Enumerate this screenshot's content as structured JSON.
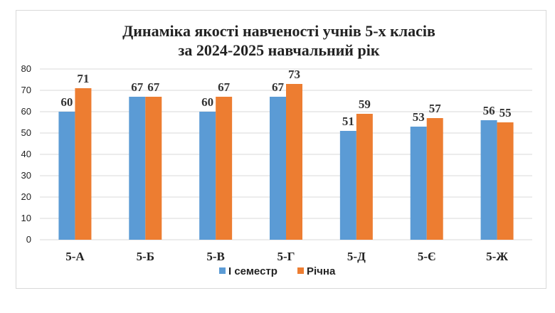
{
  "chart_data": {
    "type": "bar",
    "title_lines": [
      "Динаміка якості навченості учнів 5-х класів",
      "за 2024-2025 навчальний рік"
    ],
    "categories": [
      "5-А",
      "5-Б",
      "5-В",
      "5-Г",
      "5-Д",
      "5-Є",
      "5-Ж"
    ],
    "series": [
      {
        "name": "І семестр",
        "color": "#5b9bd5",
        "values": [
          60,
          67,
          60,
          67,
          51,
          53,
          56
        ]
      },
      {
        "name": "Річна",
        "color": "#ed7d31",
        "values": [
          71,
          67,
          67,
          73,
          59,
          57,
          55
        ]
      }
    ],
    "ylim": [
      0,
      80
    ],
    "yticks": [
      0,
      10,
      20,
      30,
      40,
      50,
      60,
      70,
      80
    ],
    "grid": true,
    "legend_position": "bottom",
    "xlabel": "",
    "ylabel": ""
  }
}
